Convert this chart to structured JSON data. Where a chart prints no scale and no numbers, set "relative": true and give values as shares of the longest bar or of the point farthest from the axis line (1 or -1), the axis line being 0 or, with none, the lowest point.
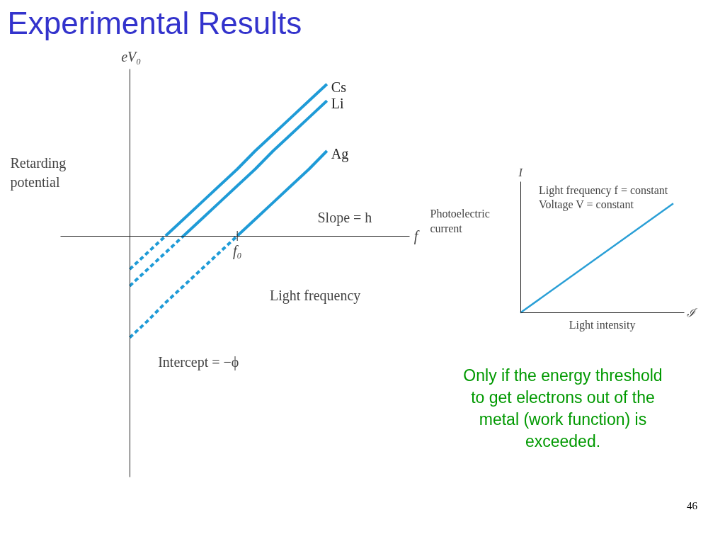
{
  "chart_data": [
    {
      "type": "line",
      "title": "Experimental Results",
      "xlabel": "Light frequency",
      "ylabel": "Retarding potential",
      "relative": true,
      "tick_labels": false,
      "categories": [
        null,
        null,
        null,
        null,
        null,
        null,
        null,
        null,
        null,
        null,
        null,
        null
      ],
      "series": [
        {
          "name": "Cs",
          "color": "#1f9bd7",
          "values": [
            null,
            null,
            0,
            0.11,
            0.22,
            0.33,
            0.44,
            0.56,
            0.67,
            0.78,
            0.89,
            1.0
          ]
        },
        {
          "name": "Li",
          "color": "#1f9bd7",
          "values": [
            null,
            null,
            null,
            0,
            0.11,
            0.22,
            0.33,
            0.44,
            0.56,
            0.67,
            0.78,
            0.89
          ]
        },
        {
          "name": "Ag",
          "color": "#1f9bd7",
          "values": [
            null,
            null,
            null,
            null,
            null,
            null,
            0,
            0.11,
            0.22,
            0.33,
            0.44,
            0.56
          ]
        },
        {
          "color": "#1f9bd7",
          "line_style": "dashed",
          "values": [
            -0.22,
            -0.11,
            0,
            null,
            null,
            null,
            null,
            null,
            null,
            null,
            null,
            null
          ]
        },
        {
          "color": "#1f9bd7",
          "line_style": "dashed",
          "values": [
            -0.33,
            -0.22,
            -0.11,
            0,
            null,
            null,
            null,
            null,
            null,
            null,
            null,
            null
          ]
        },
        {
          "color": "#1f9bd7",
          "line_style": "dashed",
          "values": [
            -0.67,
            -0.56,
            -0.44,
            -0.33,
            -0.22,
            -0.11,
            0,
            null,
            null,
            null,
            null,
            null
          ]
        }
      ],
      "annotations": [
        "eV₀",
        "f",
        "f₀",
        "Slope = h",
        "Intercept = −ϕ"
      ]
    },
    {
      "type": "line",
      "xlabel": "Light intensity",
      "ylabel": "Photoelectric current",
      "relative": true,
      "tick_labels": false,
      "categories": [
        null,
        null
      ],
      "series": [
        {
          "color": "#2a9fd6",
          "values": [
            0,
            1
          ]
        }
      ],
      "annotations": [
        "I",
        "ℐ",
        "Light frequency f = constant",
        "Voltage V = constant",
        "Only if the energy threshold to get electrons out of the metal (work function) is exceeded.",
        "46"
      ]
    }
  ]
}
